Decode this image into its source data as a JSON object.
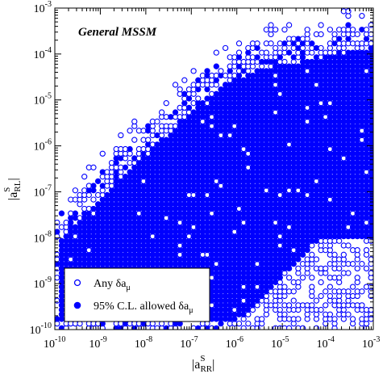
{
  "chart_data": {
    "type": "scatter",
    "title": "General MSSM",
    "xscale": "log",
    "yscale": "log",
    "xlim": [
      1e-10,
      0.001
    ],
    "ylim": [
      1e-10,
      0.001
    ],
    "xlabel": {
      "main": "|a",
      "sup": "S",
      "sub": "RR",
      "close": "|"
    },
    "ylabel": {
      "main": "|a",
      "sup": "S",
      "sub": "RL",
      "close": "|"
    },
    "x_ticks": [
      {
        "base": "10",
        "exp": "-10",
        "value": 1e-10
      },
      {
        "base": "10",
        "exp": "-9",
        "value": 1e-09
      },
      {
        "base": "10",
        "exp": "-8",
        "value": 1e-08
      },
      {
        "base": "10",
        "exp": "-7",
        "value": 1e-07
      },
      {
        "base": "10",
        "exp": "-6",
        "value": 1e-06
      },
      {
        "base": "10",
        "exp": "-5",
        "value": 1e-05
      },
      {
        "base": "10",
        "exp": "-4",
        "value": 0.0001
      },
      {
        "base": "10",
        "exp": "-3",
        "value": 0.001
      }
    ],
    "y_ticks": [
      {
        "base": "10",
        "exp": "-10",
        "value": 1e-10
      },
      {
        "base": "10",
        "exp": "-9",
        "value": 1e-09
      },
      {
        "base": "10",
        "exp": "-8",
        "value": 1e-08
      },
      {
        "base": "10",
        "exp": "-7",
        "value": 1e-07
      },
      {
        "base": "10",
        "exp": "-6",
        "value": 1e-06
      },
      {
        "base": "10",
        "exp": "-5",
        "value": 1e-05
      },
      {
        "base": "10",
        "exp": "-4",
        "value": 0.0001
      },
      {
        "base": "10",
        "exp": "-3",
        "value": 0.001
      }
    ],
    "legend": {
      "placement": "bottom-left",
      "entries": [
        {
          "marker": "open-circle",
          "text": "Any δa",
          "sub": "μ"
        },
        {
          "marker": "filled-circle",
          "text": "95% C.L. allowed δa",
          "sub": "μ"
        }
      ]
    },
    "series": [
      {
        "marker": "open-circle",
        "color": "#0000ff",
        "region": "full population envelope (edges)"
      },
      {
        "marker": "filled-circle",
        "color": "#0000ff",
        "region": "dense interior (grid-sampled)"
      }
    ],
    "envelope_log10": {
      "x": [
        -10,
        -9.5,
        -9,
        -8.5,
        -8,
        -7.5,
        -7,
        -6.5,
        -6,
        -5.5,
        -5,
        -4.5,
        -4,
        -3.5,
        -3
      ],
      "y_low": [
        -10,
        -10,
        -10,
        -10,
        -10,
        -10,
        -10,
        -10,
        -10,
        -10,
        -10,
        -10,
        -9.8,
        -9.6,
        -9.4
      ],
      "y_high_filled": [
        -7.9,
        -7.3,
        -6.8,
        -6.3,
        -5.8,
        -5.4,
        -4.9,
        -4.5,
        -4.2,
        -4.0,
        -3.9,
        -3.8,
        -3.7,
        -3.6,
        -3.6
      ],
      "x_min_filled": [
        -10,
        -9.9,
        -9.7,
        -9.3,
        -8.7,
        -8.1,
        -7.5,
        -7.0,
        -6.6,
        -6.2,
        -5.8,
        -5.3,
        -4.8,
        -4.4,
        -4.0
      ]
    },
    "grid": false
  }
}
